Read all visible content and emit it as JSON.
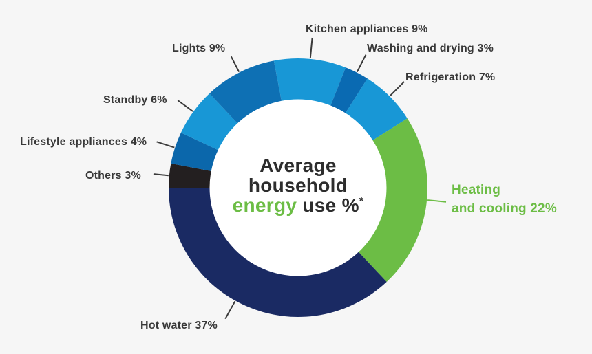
{
  "background": "#f6f6f6",
  "inner_circle_color": "#ffffff",
  "text_color": "#383838",
  "center_label": {
    "line1": "Average",
    "line2": "household",
    "line3_highlight": "energy",
    "line3_rest": " use %",
    "line3_sup": "*",
    "highlight_color": "#6cbd45",
    "text_color": "#2d2d2d"
  },
  "chart_data": {
    "type": "pie",
    "subtype": "donut",
    "title": "Average household energy use %*",
    "units": "percent",
    "total": 100,
    "start_angle_deg": -10.8,
    "legend_position": "around-chart-with-leader-lines",
    "segments": [
      {
        "id": "kitchen-appliances",
        "label": "Kitchen appliances",
        "value": 9,
        "display": "Kitchen appliances 9%",
        "color": "#1897d6",
        "label_color": "#383838",
        "label_lines": [
          "Kitchen appliances 9%"
        ]
      },
      {
        "id": "washing-drying",
        "label": "Washing and drying",
        "value": 3,
        "display": "Washing and drying 3%",
        "color": "#0a6ab2",
        "label_color": "#383838",
        "label_lines": [
          "Washing and drying 3%"
        ]
      },
      {
        "id": "refrigeration",
        "label": "Refrigeration",
        "value": 7,
        "display": "Refrigeration 7%",
        "color": "#1897d6",
        "label_color": "#383838",
        "label_lines": [
          "Refrigeration 7%"
        ]
      },
      {
        "id": "heating-cooling",
        "label": "Heating and cooling",
        "value": 22,
        "display": "Heating and cooling 22%",
        "color": "#6cbd45",
        "label_color": "#6cbd45",
        "label_lines": [
          "Heating",
          "and cooling 22%"
        ]
      },
      {
        "id": "hot-water",
        "label": "Hot water",
        "value": 37,
        "display": "Hot water 37%",
        "color": "#1a2a63",
        "label_color": "#383838",
        "label_lines": [
          "Hot water 37%"
        ]
      },
      {
        "id": "others",
        "label": "Others",
        "value": 3,
        "display": "Others 3%",
        "color": "#231f20",
        "label_color": "#383838",
        "label_lines": [
          "Others 3%"
        ]
      },
      {
        "id": "lifestyle-appliances",
        "label": "Lifestyle appliances",
        "value": 4,
        "display": "Lifestyle appliances 4%",
        "color": "#0b67ab",
        "label_color": "#383838",
        "label_lines": [
          "Lifestyle appliances 4%"
        ]
      },
      {
        "id": "standby",
        "label": "Standby",
        "value": 6,
        "display": "Standby 6%",
        "color": "#1897d6",
        "label_color": "#383838",
        "label_lines": [
          "Standby 6%"
        ]
      },
      {
        "id": "lights",
        "label": "Lights",
        "value": 9,
        "display": "Lights 9%",
        "color": "#0e70b4",
        "label_color": "#383838",
        "label_lines": [
          "Lights 9%"
        ]
      }
    ]
  }
}
